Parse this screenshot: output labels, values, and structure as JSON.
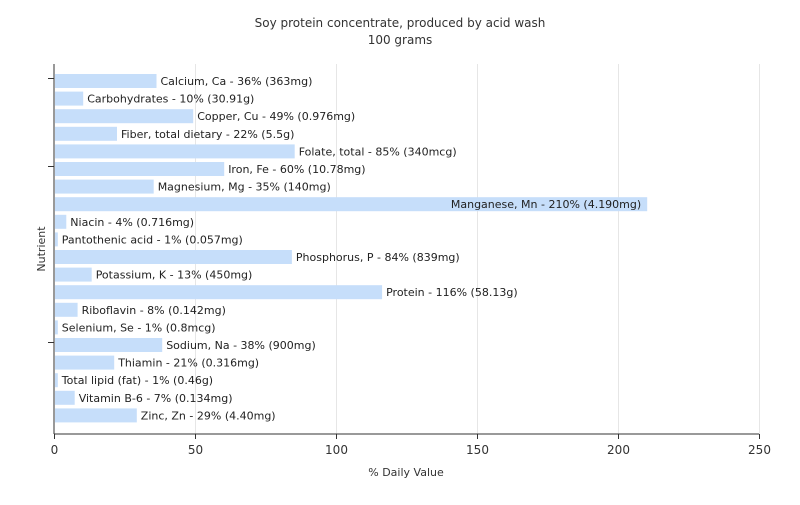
{
  "chart_data": {
    "type": "bar",
    "orientation": "horizontal",
    "title": "Soy protein concentrate, produced by acid wash",
    "subtitle": "100 grams",
    "xlabel": "% Daily Value",
    "ylabel": "Nutrient",
    "xlim": [
      0,
      250
    ],
    "xticks": [
      0,
      50,
      100,
      150,
      200,
      250
    ],
    "grid": true,
    "bar_color": "#c6defa",
    "categories": [
      "Calcium, Ca",
      "Carbohydrates",
      "Copper, Cu",
      "Fiber, total dietary",
      "Folate, total",
      "Iron, Fe",
      "Magnesium, Mg",
      "Manganese, Mn",
      "Niacin",
      "Pantothenic acid",
      "Phosphorus, P",
      "Potassium, K",
      "Protein",
      "Riboflavin",
      "Selenium, Se",
      "Sodium, Na",
      "Thiamin",
      "Total lipid (fat)",
      "Vitamin B-6",
      "Zinc, Zn"
    ],
    "values": [
      36,
      10,
      49,
      22,
      85,
      60,
      35,
      210,
      4,
      1,
      84,
      13,
      116,
      8,
      1,
      38,
      21,
      1,
      7,
      29
    ],
    "labels": [
      "Calcium, Ca - 36% (363mg)",
      "Carbohydrates - 10% (30.91g)",
      "Copper, Cu - 49% (0.976mg)",
      "Fiber, total dietary - 22% (5.5g)",
      "Folate, total - 85% (340mcg)",
      "Iron, Fe - 60% (10.78mg)",
      "Magnesium, Mg - 35% (140mg)",
      "Manganese, Mn - 210% (4.190mg)",
      "Niacin - 4% (0.716mg)",
      "Pantothenic acid - 1% (0.057mg)",
      "Phosphorus, P - 84% (839mg)",
      "Potassium, K - 13% (450mg)",
      "Protein - 116% (58.13g)",
      "Riboflavin - 8% (0.142mg)",
      "Selenium, Se - 1% (0.8mcg)",
      "Sodium, Na - 38% (900mg)",
      "Thiamin - 21% (0.316mg)",
      "Total lipid (fat) - 1% (0.46g)",
      "Vitamin B-6 - 7% (0.134mg)",
      "Zinc, Zn - 29% (4.40mg)"
    ]
  }
}
